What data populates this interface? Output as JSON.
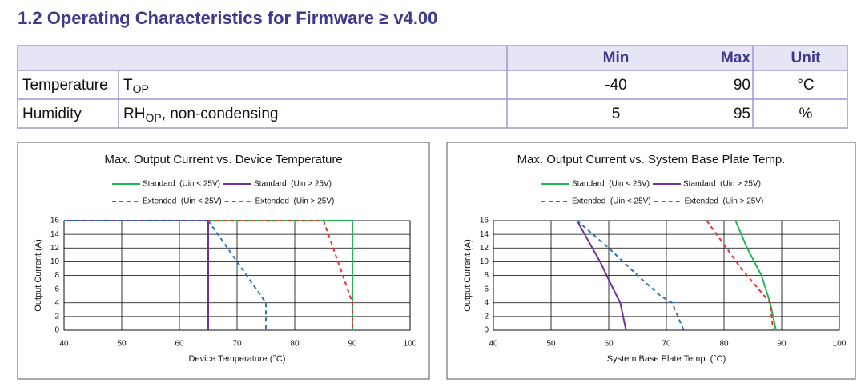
{
  "heading": "1.2 Operating Characteristics for Firmware ≥ v4.00",
  "table": {
    "header": [
      "Min",
      "Max",
      "Unit"
    ],
    "rows": [
      {
        "parameter": "Temperature",
        "symbol": "T",
        "subscript": "OP",
        "min": -40,
        "max": 90,
        "unit": "°C"
      },
      {
        "parameter": "Humidity",
        "symbol": "RH",
        "subscript": "OP",
        "note": ", non-condensing",
        "min": 5,
        "max": 95,
        "unit": "%"
      }
    ]
  },
  "chart_data": [
    {
      "type": "line",
      "title": "Max. Output Current vs. Device Temperature",
      "xlabel": "Device Temperature (°C)",
      "ylabel": "Output Current (A)",
      "xlim": [
        40,
        100
      ],
      "xticks": [
        40,
        50,
        60,
        70,
        80,
        90,
        100
      ],
      "ylim": [
        0,
        16
      ],
      "yticks": [
        0,
        2,
        4,
        6,
        8,
        10,
        12,
        14,
        16
      ],
      "grid": true,
      "series": [
        {
          "name": "Standard  (Uin < 25V)",
          "color": "#1db954",
          "dashed": false,
          "x": [
            40,
            90,
            90
          ],
          "y": [
            16,
            16,
            0
          ]
        },
        {
          "name": "Standard  (Uin > 25V)",
          "color": "#7030a0",
          "dashed": false,
          "x": [
            40,
            65,
            65
          ],
          "y": [
            16,
            16,
            0
          ]
        },
        {
          "name": "Extended  (Uin < 25V)",
          "color": "#e8312f",
          "dashed": true,
          "x": [
            40,
            85,
            90,
            90
          ],
          "y": [
            16,
            16,
            4,
            0
          ]
        },
        {
          "name": "Extended  (Uin > 25V)",
          "color": "#2e75b6",
          "dashed": true,
          "x": [
            40,
            65,
            75,
            75
          ],
          "y": [
            16,
            16,
            4,
            0
          ]
        }
      ]
    },
    {
      "type": "line",
      "title": "Max. Output Current vs. System Base Plate Temp.",
      "xlabel": "System Base Plate Temp. (°C)",
      "ylabel": "Output Current (A)",
      "xlim": [
        40,
        100
      ],
      "xticks": [
        40,
        50,
        60,
        70,
        80,
        90,
        100
      ],
      "ylim": [
        0,
        16
      ],
      "yticks": [
        0,
        2,
        4,
        6,
        8,
        10,
        12,
        14,
        16
      ],
      "grid": true,
      "series": [
        {
          "name": "Standard  (Uin < 25V)",
          "color": "#1db954",
          "dashed": false,
          "x": [
            82,
            84,
            86.5,
            88,
            89
          ],
          "y": [
            16,
            12,
            8,
            4,
            0
          ]
        },
        {
          "name": "Standard  (Uin > 25V)",
          "color": "#7030a0",
          "dashed": false,
          "x": [
            54.5,
            56.5,
            58.5,
            60.5,
            62,
            63
          ],
          "y": [
            16,
            13,
            10,
            6.5,
            4,
            0
          ]
        },
        {
          "name": "Extended  (Uin < 25V)",
          "color": "#e8312f",
          "dashed": true,
          "x": [
            77,
            80,
            83,
            86,
            88,
            88.5
          ],
          "y": [
            16,
            12.5,
            9,
            6,
            4,
            0
          ]
        },
        {
          "name": "Extended  (Uin > 25V)",
          "color": "#2e75b6",
          "dashed": true,
          "x": [
            54.5,
            60,
            65,
            69,
            71,
            73
          ],
          "y": [
            16,
            12,
            8,
            5,
            4,
            0
          ]
        }
      ]
    }
  ]
}
